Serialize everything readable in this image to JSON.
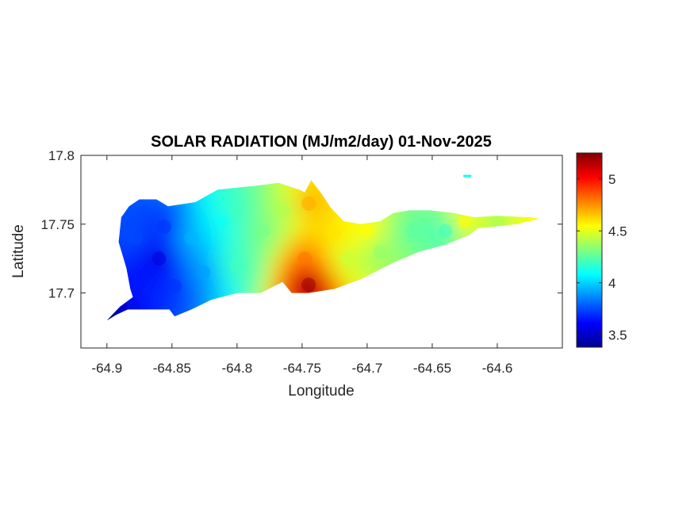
{
  "chart_data": {
    "type": "heatmap",
    "title": "SOLAR RADIATION (MJ/m2/day) 01-Nov-2025",
    "xlabel": "Longitude",
    "ylabel": "Latitude",
    "xlim": [
      -64.92,
      -64.55
    ],
    "ylim": [
      17.66,
      17.8
    ],
    "xticks": [
      -64.9,
      -64.85,
      -64.8,
      -64.75,
      -64.7,
      -64.65,
      -64.6
    ],
    "xtick_labels": [
      "-64.9",
      "-64.85",
      "-64.8",
      "-64.75",
      "-64.7",
      "-64.65",
      "-64.6"
    ],
    "yticks": [
      17.7,
      17.75,
      17.8
    ],
    "ytick_labels": [
      "17.7",
      "17.75",
      "17.8"
    ],
    "colorbar": {
      "range": [
        3.38,
        5.25
      ],
      "ticks": [
        3.5,
        4,
        4.5,
        5
      ],
      "tick_labels": [
        "3.5",
        "4",
        "4.5",
        "5"
      ],
      "colormap": "jet"
    },
    "grid": false,
    "region_outline": [
      [
        -64.9,
        17.68
      ],
      [
        -64.89,
        17.69
      ],
      [
        -64.88,
        17.697
      ],
      [
        -64.882,
        17.703
      ],
      [
        -64.885,
        17.718
      ],
      [
        -64.891,
        17.737
      ],
      [
        -64.889,
        17.755
      ],
      [
        -64.883,
        17.763
      ],
      [
        -64.875,
        17.768
      ],
      [
        -64.862,
        17.768
      ],
      [
        -64.853,
        17.763
      ],
      [
        -64.832,
        17.766
      ],
      [
        -64.815,
        17.775
      ],
      [
        -64.795,
        17.777
      ],
      [
        -64.785,
        17.778
      ],
      [
        -64.768,
        17.78
      ],
      [
        -64.752,
        17.775
      ],
      [
        -64.748,
        17.773
      ],
      [
        -64.743,
        17.782
      ],
      [
        -64.735,
        17.772
      ],
      [
        -64.728,
        17.762
      ],
      [
        -64.718,
        17.752
      ],
      [
        -64.705,
        17.75
      ],
      [
        -64.69,
        17.752
      ],
      [
        -64.68,
        17.758
      ],
      [
        -64.668,
        17.76
      ],
      [
        -64.652,
        17.76
      ],
      [
        -64.633,
        17.758
      ],
      [
        -64.618,
        17.755
      ],
      [
        -64.6,
        17.756
      ],
      [
        -64.575,
        17.755
      ],
      [
        -64.568,
        17.754
      ],
      [
        -64.585,
        17.75
      ],
      [
        -64.615,
        17.747
      ],
      [
        -64.622,
        17.742
      ],
      [
        -64.64,
        17.735
      ],
      [
        -64.66,
        17.73
      ],
      [
        -64.68,
        17.722
      ],
      [
        -64.705,
        17.71
      ],
      [
        -64.725,
        17.703
      ],
      [
        -64.745,
        17.7
      ],
      [
        -64.758,
        17.7
      ],
      [
        -64.765,
        17.708
      ],
      [
        -64.782,
        17.7
      ],
      [
        -64.8,
        17.7
      ],
      [
        -64.82,
        17.695
      ],
      [
        -64.835,
        17.688
      ],
      [
        -64.848,
        17.683
      ],
      [
        -64.852,
        17.688
      ],
      [
        -64.875,
        17.688
      ],
      [
        -64.884,
        17.688
      ],
      [
        -64.893,
        17.684
      ]
    ],
    "field_samples": [
      {
        "lon": -64.897,
        "lat": 17.681,
        "value": 3.38
      },
      {
        "lon": -64.88,
        "lat": 17.7,
        "value": 3.65
      },
      {
        "lon": -64.878,
        "lat": 17.74,
        "value": 3.75
      },
      {
        "lon": -64.86,
        "lat": 17.725,
        "value": 3.55
      },
      {
        "lon": -64.856,
        "lat": 17.748,
        "value": 3.7
      },
      {
        "lon": -64.848,
        "lat": 17.705,
        "value": 3.7
      },
      {
        "lon": -64.835,
        "lat": 17.74,
        "value": 3.95
      },
      {
        "lon": -64.826,
        "lat": 17.715,
        "value": 3.9
      },
      {
        "lon": -64.812,
        "lat": 17.752,
        "value": 4.1
      },
      {
        "lon": -64.8,
        "lat": 17.76,
        "value": 4.2
      },
      {
        "lon": -64.8,
        "lat": 17.72,
        "value": 4.2
      },
      {
        "lon": -64.78,
        "lat": 17.745,
        "value": 4.3
      },
      {
        "lon": -64.765,
        "lat": 17.76,
        "value": 4.4
      },
      {
        "lon": -64.745,
        "lat": 17.765,
        "value": 4.7
      },
      {
        "lon": -64.745,
        "lat": 17.706,
        "value": 5.2
      },
      {
        "lon": -64.748,
        "lat": 17.725,
        "value": 4.8
      },
      {
        "lon": -64.725,
        "lat": 17.743,
        "value": 4.6
      },
      {
        "lon": -64.715,
        "lat": 17.725,
        "value": 4.45
      },
      {
        "lon": -64.7,
        "lat": 17.745,
        "value": 4.55
      },
      {
        "lon": -64.69,
        "lat": 17.73,
        "value": 4.35
      },
      {
        "lon": -64.665,
        "lat": 17.745,
        "value": 4.25
      },
      {
        "lon": -64.64,
        "lat": 17.745,
        "value": 4.2
      },
      {
        "lon": -64.625,
        "lat": 17.752,
        "value": 4.55
      },
      {
        "lon": -64.6,
        "lat": 17.752,
        "value": 4.4
      },
      {
        "lon": -64.575,
        "lat": 17.754,
        "value": 4.55
      }
    ],
    "small_islet": {
      "lon": -64.623,
      "lat": 17.785,
      "value": 4.1
    }
  }
}
